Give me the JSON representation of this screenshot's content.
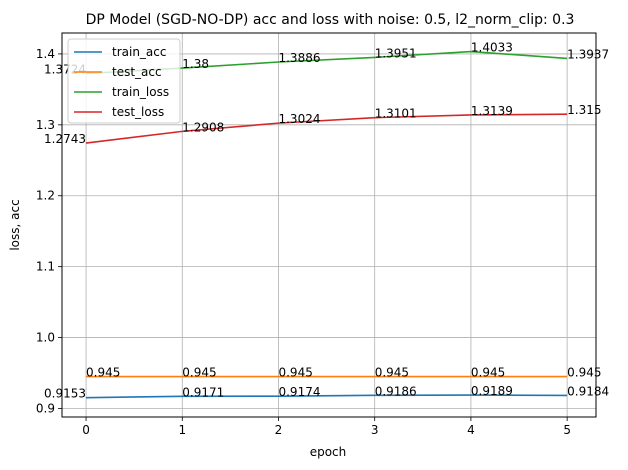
{
  "chart_data": {
    "type": "line",
    "title": "DP Model (SGD-NO-DP) acc and loss with noise: 0.5, l2_norm_clip: 0.3",
    "xlabel": "epoch",
    "ylabel": "loss, acc",
    "x": [
      0,
      1,
      2,
      3,
      4,
      5
    ],
    "xticks": [
      "0",
      "1",
      "2",
      "3",
      "4",
      "5"
    ],
    "yticks": [
      "0.9",
      "1.0",
      "1.1",
      "1.2",
      "1.3",
      "1.4"
    ],
    "xlim": [
      -0.25,
      5.3
    ],
    "ylim": [
      0.888,
      1.4295
    ],
    "grid": true,
    "legend_position": "top-left",
    "series": [
      {
        "name": "train_acc",
        "color": "#1f77b4",
        "values": [
          0.9153,
          0.9171,
          0.9174,
          0.9186,
          0.9189,
          0.9184
        ]
      },
      {
        "name": "test_acc",
        "color": "#ff7f0e",
        "values": [
          0.945,
          0.945,
          0.945,
          0.945,
          0.945,
          0.945
        ]
      },
      {
        "name": "train_loss",
        "color": "#2ca02c",
        "values": [
          1.3724,
          1.38,
          1.3886,
          1.3951,
          1.4033,
          1.3937
        ]
      },
      {
        "name": "test_loss",
        "color": "#d62728",
        "values": [
          1.2743,
          1.2908,
          1.3024,
          1.3101,
          1.3139,
          1.315
        ]
      }
    ]
  }
}
